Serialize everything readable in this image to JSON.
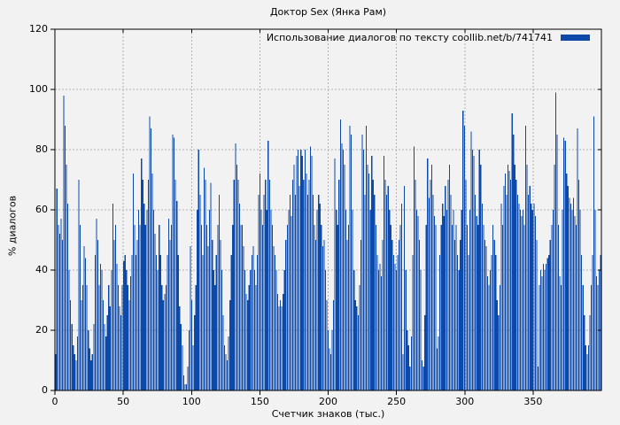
{
  "colors": {
    "background": "#f2f2f2",
    "bar": "#0c49a8",
    "grid": "#b3b3b3",
    "border": "#000000",
    "text": "#000000"
  },
  "chart_data": {
    "type": "bar",
    "title": "Доктор Sex (Янка Рам)",
    "legend": {
      "label": "Использование диалогов по тексту coollib.net/b/741741",
      "position": "top-right"
    },
    "xlabel": "Счетчик знаков (тыс.)",
    "ylabel": "% диалогов",
    "xlim": [
      0,
      400
    ],
    "ylim": [
      0,
      120
    ],
    "x_ticks": [
      0,
      50,
      100,
      150,
      200,
      250,
      300,
      350
    ],
    "y_ticks": [
      0,
      20,
      40,
      60,
      80,
      100,
      120
    ],
    "grid": true,
    "x_start": 0,
    "x_step": 1,
    "values": [
      12,
      67,
      55,
      52,
      57,
      50,
      98,
      88,
      75,
      62,
      40,
      30,
      22,
      15,
      12,
      10,
      18,
      70,
      55,
      30,
      35,
      48,
      44,
      35,
      20,
      14,
      10,
      12,
      22,
      45,
      57,
      50,
      35,
      42,
      40,
      30,
      22,
      18,
      25,
      35,
      28,
      40,
      62,
      50,
      55,
      42,
      35,
      28,
      25,
      35,
      43,
      45,
      40,
      35,
      30,
      38,
      45,
      72,
      55,
      45,
      50,
      60,
      55,
      77,
      70,
      62,
      55,
      60,
      70,
      91,
      87,
      72,
      60,
      52,
      45,
      40,
      55,
      45,
      35,
      30,
      32,
      35,
      45,
      57,
      50,
      55,
      85,
      84,
      70,
      63,
      45,
      28,
      22,
      15,
      5,
      2,
      2,
      8,
      20,
      48,
      30,
      15,
      25,
      35,
      60,
      80,
      65,
      55,
      45,
      74,
      70,
      55,
      48,
      60,
      69,
      50,
      40,
      35,
      45,
      55,
      65,
      50,
      40,
      25,
      15,
      12,
      10,
      18,
      30,
      45,
      55,
      70,
      82,
      75,
      70,
      62,
      55,
      55,
      48,
      40,
      32,
      30,
      35,
      40,
      45,
      48,
      40,
      35,
      45,
      65,
      72,
      60,
      55,
      65,
      70,
      60,
      83,
      70,
      60,
      55,
      48,
      45,
      40,
      32,
      28,
      30,
      28,
      32,
      40,
      50,
      55,
      60,
      65,
      58,
      70,
      75,
      65,
      78,
      80,
      68,
      80,
      78,
      70,
      80,
      72,
      65,
      70,
      81,
      78,
      65,
      55,
      50,
      60,
      65,
      62,
      55,
      48,
      50,
      40,
      30,
      20,
      14,
      12,
      20,
      30,
      77,
      60,
      55,
      70,
      90,
      82,
      80,
      75,
      60,
      50,
      55,
      88,
      85,
      60,
      40,
      30,
      28,
      25,
      35,
      50,
      85,
      80,
      65,
      88,
      75,
      72,
      60,
      78,
      70,
      65,
      55,
      45,
      40,
      42,
      38,
      50,
      78,
      70,
      65,
      68,
      60,
      55,
      50,
      45,
      42,
      40,
      45,
      50,
      55,
      62,
      12,
      68,
      40,
      20,
      15,
      8,
      18,
      45,
      81,
      70,
      60,
      58,
      50,
      40,
      10,
      8,
      25,
      55,
      77,
      64,
      70,
      75,
      65,
      58,
      55,
      14,
      18,
      45,
      55,
      62,
      58,
      68,
      60,
      70,
      75,
      65,
      55,
      60,
      50,
      55,
      45,
      40,
      50,
      60,
      93,
      88,
      70,
      55,
      45,
      60,
      86,
      80,
      78,
      65,
      58,
      55,
      80,
      75,
      62,
      55,
      50,
      48,
      38,
      35,
      40,
      45,
      55,
      50,
      45,
      30,
      25,
      35,
      62,
      55,
      68,
      72,
      65,
      75,
      73,
      70,
      92,
      85,
      75,
      70,
      65,
      62,
      60,
      58,
      60,
      55,
      88,
      75,
      65,
      68,
      62,
      60,
      62,
      58,
      50,
      8,
      35,
      40,
      38,
      42,
      40,
      42,
      44,
      45,
      50,
      55,
      60,
      75,
      99,
      85,
      55,
      38,
      35,
      60,
      84,
      83,
      72,
      68,
      64,
      62,
      60,
      64,
      58,
      55,
      87,
      70,
      60,
      45,
      35,
      25,
      15,
      12,
      15,
      25,
      35,
      45,
      91,
      60,
      38,
      35,
      40,
      45
    ]
  }
}
